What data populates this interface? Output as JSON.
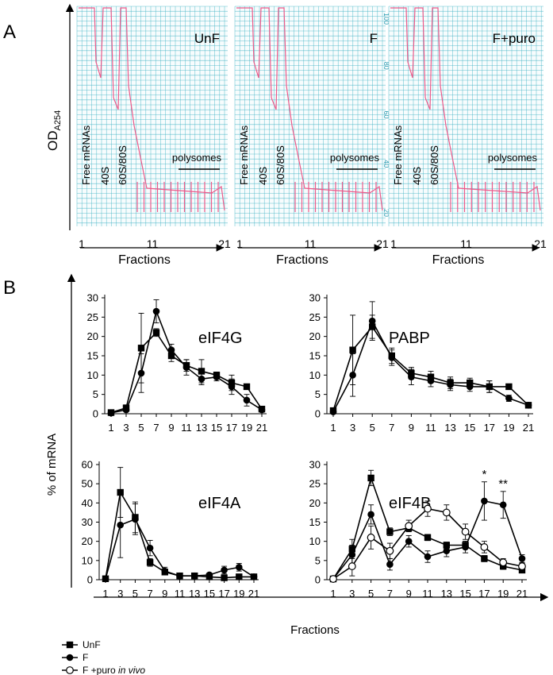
{
  "panel_labels": {
    "a": "A",
    "b": "B"
  },
  "profiles": {
    "ylabel": "OD",
    "ylabel_sub": "A254",
    "xlabel": "Fractions",
    "line_color": "#ec5a8a",
    "grid_color": "#3fb3c4",
    "scale_labels": [
      "100",
      "80",
      "60",
      "40",
      "20"
    ],
    "panels": [
      {
        "title": "UnF",
        "fractions": [
          "1",
          "11",
          "21"
        ],
        "peaks": [
          "Free mRNAs",
          "40S",
          "60S/80S"
        ],
        "polysomes": "polysomes",
        "scale": false
      },
      {
        "title": "F",
        "fractions": [
          "1",
          "11",
          "21"
        ],
        "peaks": [
          "Free mRNAs",
          "40S",
          "60S/80S"
        ],
        "polysomes": "polysomes",
        "scale": true
      },
      {
        "title": "F+puro",
        "fractions": [
          "1",
          "11",
          "21"
        ],
        "peaks": [
          "Free mRNAs",
          "40S",
          "60S/80S"
        ],
        "polysomes": "polysomes",
        "scale": false
      }
    ]
  },
  "chart_data": [
    {
      "type": "line",
      "title": "eIF4G",
      "x": [
        1,
        3,
        5,
        7,
        9,
        11,
        13,
        15,
        17,
        19,
        21
      ],
      "ylim": [
        0,
        30
      ],
      "yticks": [
        0,
        5,
        10,
        15,
        20,
        25,
        30
      ],
      "series": [
        {
          "name": "UnF",
          "marker": "square",
          "values": [
            0.3,
            1.5,
            17,
            21,
            15,
            12.5,
            11,
            10,
            8,
            7,
            1.2
          ],
          "errors": [
            0.2,
            0.8,
            9,
            1,
            1.5,
            1.5,
            3,
            0.8,
            2,
            0.6,
            0.3
          ]
        },
        {
          "name": "F",
          "marker": "circle",
          "values": [
            0.2,
            1.0,
            10.5,
            26.5,
            16.5,
            12,
            9,
            9.5,
            7,
            3.5,
            1.0
          ],
          "errors": [
            0.2,
            0.5,
            5,
            3,
            1.5,
            2,
            1.5,
            1,
            2,
            1.5,
            0.3
          ]
        }
      ]
    },
    {
      "type": "line",
      "title": "PABP",
      "x": [
        1,
        3,
        5,
        7,
        9,
        11,
        13,
        15,
        17,
        19,
        21
      ],
      "ylim": [
        0,
        30
      ],
      "yticks": [
        0,
        5,
        10,
        15,
        20,
        25,
        30
      ],
      "series": [
        {
          "name": "UnF",
          "marker": "square",
          "values": [
            0.8,
            16.5,
            22.5,
            15,
            10.5,
            9.5,
            8,
            8,
            7,
            7,
            2.2
          ],
          "errors": [
            0.3,
            9,
            3,
            2,
            1.5,
            1.5,
            1.5,
            1.2,
            1.5,
            0.6,
            0.3
          ]
        },
        {
          "name": "F",
          "marker": "circle",
          "values": [
            0.5,
            10,
            24,
            14.5,
            9.5,
            8.5,
            7.5,
            7,
            7,
            4,
            2.2
          ],
          "errors": [
            0.3,
            5.5,
            5,
            2,
            2,
            1.5,
            1.5,
            1.2,
            1.5,
            0.8,
            0.3
          ]
        }
      ]
    },
    {
      "type": "line",
      "title": "eIF4A",
      "x": [
        1,
        3,
        5,
        7,
        9,
        11,
        13,
        15,
        17,
        19,
        21
      ],
      "ylim": [
        0,
        60
      ],
      "yticks": [
        0,
        10,
        20,
        30,
        40,
        50,
        60
      ],
      "series": [
        {
          "name": "UnF",
          "marker": "square",
          "values": [
            0.5,
            45.5,
            32.5,
            9,
            4,
            2,
            2,
            1.5,
            1,
            1.5,
            1.5
          ],
          "errors": [
            0.3,
            13,
            8,
            2,
            1.5,
            0.5,
            0.5,
            0.5,
            0.5,
            0.5,
            0.5
          ]
        },
        {
          "name": "F",
          "marker": "circle",
          "values": [
            0.5,
            28.5,
            31.5,
            16.5,
            4.5,
            2,
            2,
            2.5,
            5,
            6.5,
            1.5
          ],
          "errors": [
            0.3,
            17,
            8,
            4,
            2,
            0.8,
            0.8,
            1,
            2,
            2,
            0.5
          ]
        }
      ]
    },
    {
      "type": "line",
      "title": "eIF4B",
      "x": [
        1,
        3,
        5,
        7,
        9,
        11,
        13,
        15,
        17,
        19,
        21
      ],
      "ylim": [
        0,
        30
      ],
      "yticks": [
        0,
        5,
        10,
        15,
        20,
        25,
        30
      ],
      "annotations": [
        {
          "x": 17,
          "text": "*"
        },
        {
          "x": 19,
          "text": "**"
        }
      ],
      "series": [
        {
          "name": "UnF",
          "marker": "square",
          "values": [
            0.2,
            8,
            26.5,
            12.5,
            13.5,
            11,
            9,
            9,
            5.5,
            3.5,
            2.5
          ],
          "errors": [
            0.2,
            2.5,
            2,
            1,
            1,
            0.8,
            0.8,
            1,
            0.8,
            0.8,
            0.6
          ]
        },
        {
          "name": "F",
          "marker": "circle",
          "values": [
            0.2,
            6.5,
            17,
            4,
            10,
            6,
            7.5,
            8.5,
            20.5,
            19.5,
            5.5
          ],
          "errors": [
            0.2,
            2.5,
            2.5,
            1.5,
            1.5,
            1.5,
            1.5,
            1.5,
            5,
            3.5,
            1
          ]
        },
        {
          "name": "F +puro in vivo",
          "marker": "open-circle",
          "values": [
            0.2,
            3.5,
            11,
            7.5,
            14,
            18.5,
            17.5,
            12.5,
            8.5,
            4.5,
            3.5
          ],
          "errors": [
            0.2,
            2.5,
            3,
            2,
            1.5,
            2,
            2,
            2,
            1.5,
            1,
            0.8
          ]
        }
      ]
    }
  ],
  "shared": {
    "ylabel": "% of mRNA",
    "xlabel": "Fractions"
  },
  "legend": [
    {
      "marker": "square",
      "text": "UnF"
    },
    {
      "marker": "circle",
      "text": "F"
    },
    {
      "marker": "open-circle",
      "text": "F +puro ",
      "italic": "in vivo"
    }
  ]
}
